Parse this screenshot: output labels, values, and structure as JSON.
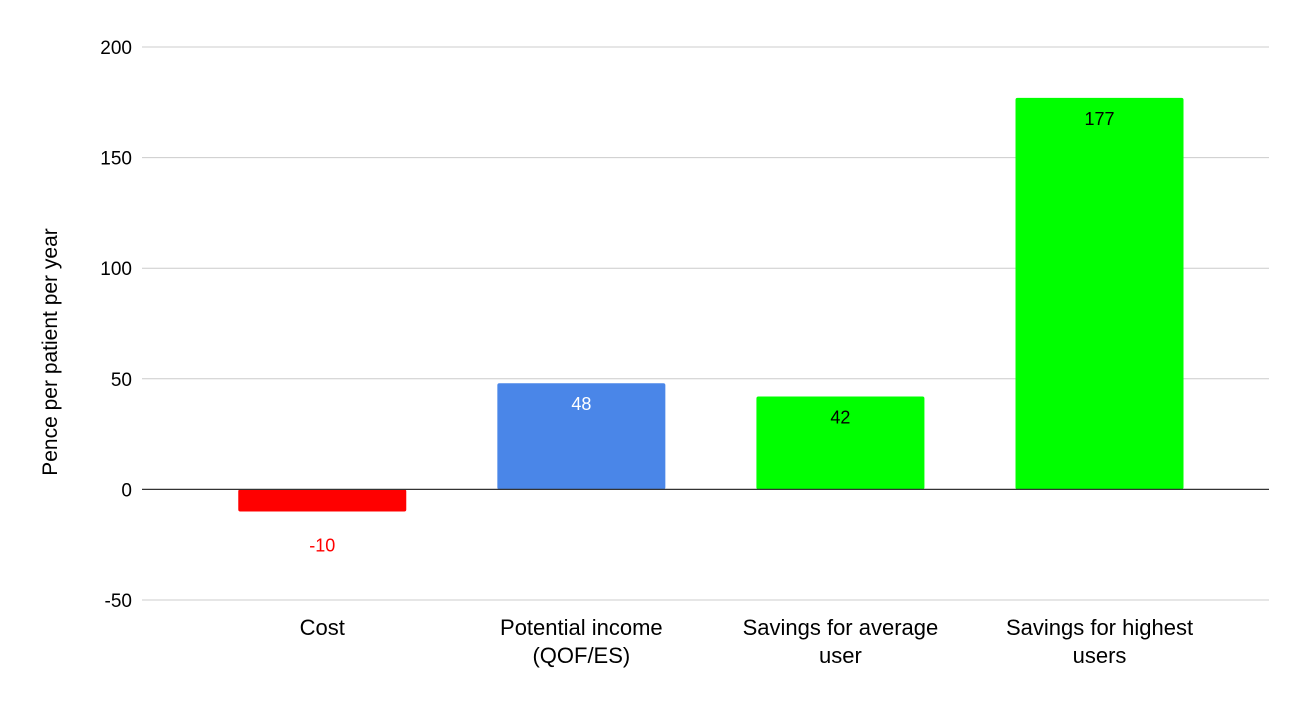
{
  "chart_data": {
    "type": "bar",
    "title": "",
    "xlabel": "",
    "ylabel": "Pence per patient per year",
    "ylim": [
      -50,
      200
    ],
    "yticks": [
      -50,
      0,
      50,
      100,
      150,
      200
    ],
    "grid": true,
    "legend": "none",
    "categories": [
      [
        "Cost"
      ],
      [
        "Potential income",
        "(QOF/ES)"
      ],
      [
        "Savings for average",
        "user"
      ],
      [
        "Savings for highest",
        "users"
      ]
    ],
    "values": [
      -10,
      48,
      42,
      177
    ],
    "bar_colors": [
      "#ff0000",
      "#4a86e8",
      "#00ff00",
      "#00ff00"
    ],
    "label_colors": [
      "#ff0000",
      "#ffffff",
      "#000000",
      "#000000"
    ],
    "data_labels": [
      "-10",
      "48",
      "42",
      "177"
    ]
  }
}
